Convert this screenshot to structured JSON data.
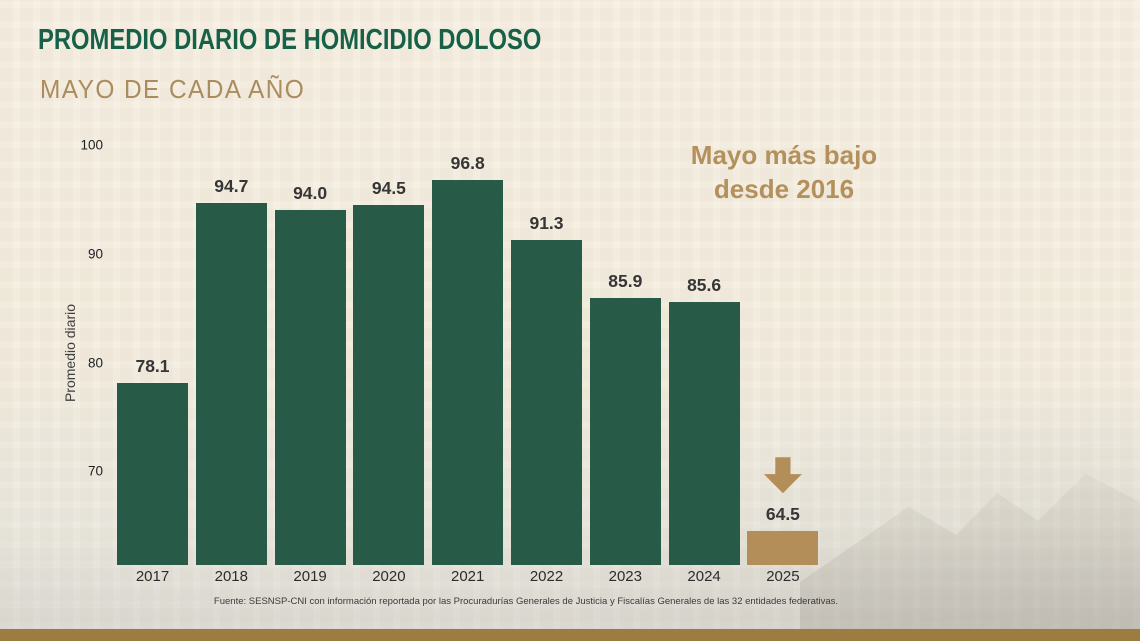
{
  "header": {
    "title": "PROMEDIO DIARIO DE HOMICIDIO DOLOSO",
    "subtitle": "MAYO DE CADA AÑO"
  },
  "annotation": {
    "line1": "Mayo más bajo",
    "line2": "desde 2016"
  },
  "footer": {
    "source": "Fuente: SESNSP-CNI con información reportada por las Procuradurías Generales de Justicia y Fiscalías Generales de las 32 entidades federativas."
  },
  "colors": {
    "bar_green": "#275b48",
    "bar_gold": "#b38e58",
    "title_green": "#176149",
    "subtitle_tan": "#aa8c5e",
    "annotation_tan": "#b3905c",
    "stripe_gold": "#9c7c40",
    "background_cream": "#f5efe3",
    "value_label": "#363636"
  },
  "chart_data": {
    "type": "bar",
    "title": "PROMEDIO DIARIO DE HOMICIDIO DOLOSO",
    "subtitle": "MAYO DE CADA AÑO",
    "categories": [
      "2017",
      "2018",
      "2019",
      "2020",
      "2021",
      "2022",
      "2023",
      "2024",
      "2025"
    ],
    "values": [
      78.1,
      94.7,
      94.0,
      94.5,
      96.8,
      91.3,
      85.9,
      85.6,
      64.5
    ],
    "value_labels": [
      "78.1",
      "94.7",
      "94.0",
      "94.5",
      "96.8",
      "91.3",
      "85.9",
      "85.6",
      "64.5"
    ],
    "xlabel": "",
    "ylabel": "Promedio diario",
    "yticks": [
      70,
      80,
      90,
      100
    ],
    "ylim": [
      61.4,
      101
    ],
    "grid": false,
    "legend": false,
    "highlight_index": 8,
    "highlight_note": "Mayo más bajo desde 2016"
  }
}
